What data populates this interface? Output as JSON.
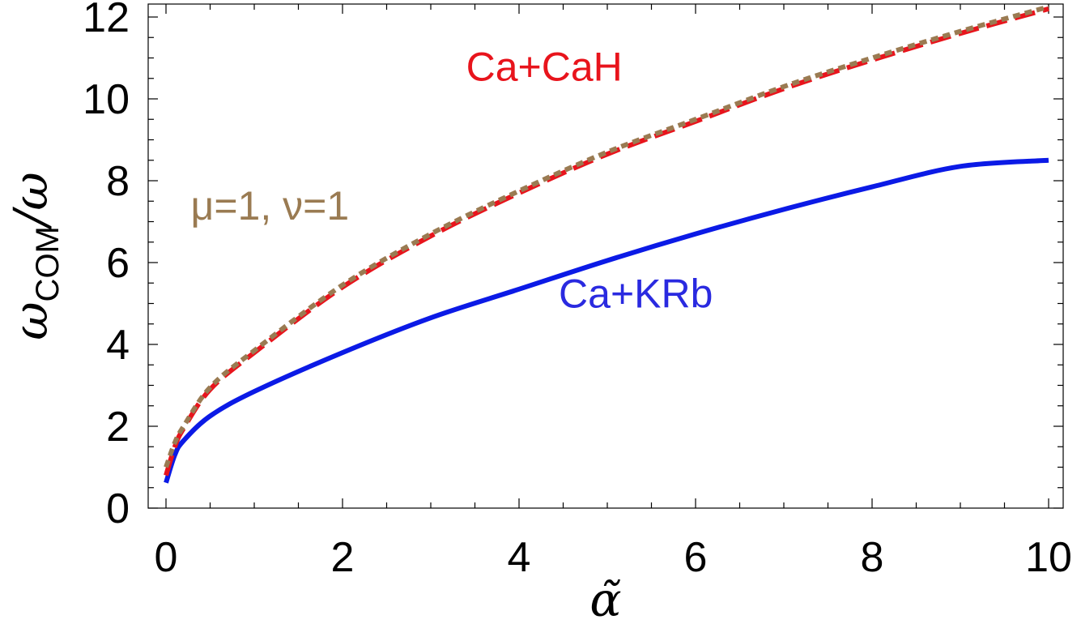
{
  "chart_data": {
    "type": "line",
    "title": "",
    "xlabel": "α̃",
    "ylabel": {
      "main": "ω",
      "subscript": "COM",
      "suffix": "/ω"
    },
    "xlim": [
      0,
      10
    ],
    "ylim": [
      0,
      12.4
    ],
    "xticks": [
      0,
      2,
      4,
      6,
      8,
      10
    ],
    "yticks": [
      0,
      2,
      4,
      6,
      8,
      10,
      12
    ],
    "xtick_labels": [
      "0",
      "2",
      "4",
      "6",
      "8",
      "10"
    ],
    "ytick_labels": [
      "0",
      "2",
      "4",
      "6",
      "8",
      "10",
      "12"
    ],
    "grid": false,
    "series": [
      {
        "color": "#0b1ae6",
        "style": "solid",
        "x": [
          0,
          0.1,
          0.2,
          0.5,
          1,
          2,
          3,
          4,
          5,
          6,
          7,
          8,
          9,
          10
        ],
        "y": [
          0.62,
          1.3,
          1.65,
          2.25,
          2.85,
          3.8,
          4.65,
          5.35,
          6.05,
          6.7,
          7.3,
          7.85,
          8.35,
          8.5
        ]
      },
      {
        "color": "#e8141c",
        "style": "dashed",
        "x": [
          0,
          0.1,
          0.2,
          0.5,
          1,
          2,
          3,
          4,
          5,
          6,
          7,
          8,
          9,
          10
        ],
        "y": [
          0.8,
          1.5,
          1.95,
          2.9,
          3.8,
          5.4,
          6.65,
          7.7,
          8.65,
          9.45,
          10.25,
          10.95,
          11.6,
          12.2
        ]
      },
      {
        "color": "#9a7b52",
        "style": "dotted",
        "x": [
          0,
          0.1,
          0.2,
          0.5,
          1,
          2,
          3,
          4,
          5,
          6,
          7,
          8,
          9,
          10
        ],
        "y": [
          1.0,
          1.6,
          2.0,
          2.95,
          3.85,
          5.45,
          6.7,
          7.75,
          8.7,
          9.5,
          10.3,
          11.0,
          11.65,
          12.25
        ]
      }
    ],
    "annotations": [
      {
        "text": "Ca+CaH",
        "color": "#e8141c",
        "x": 3.4,
        "y": 10.45
      },
      {
        "text": "μ=1, ν=1",
        "color": "#9a7b52",
        "x": 0.28,
        "y": 7.05
      },
      {
        "text": "Ca+KRb",
        "color": "#2a2ae0",
        "x": 4.45,
        "y": 4.9
      }
    ]
  }
}
